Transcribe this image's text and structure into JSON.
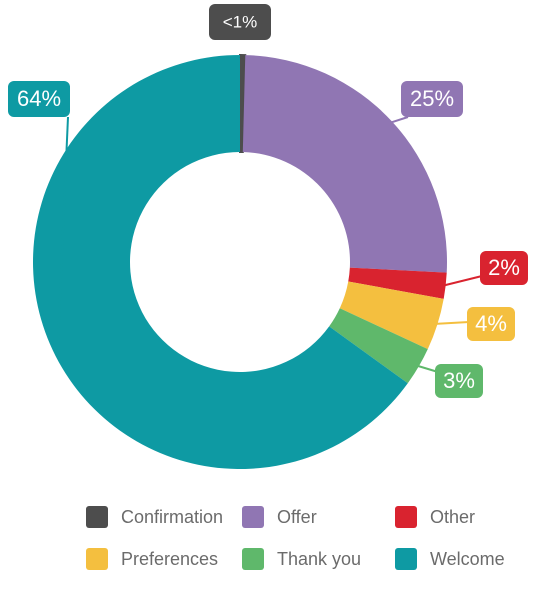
{
  "chart_data": {
    "type": "pie",
    "variant": "donut",
    "title": "",
    "slices": [
      {
        "name": "Confirmation",
        "value": 0.4,
        "label": "<1%",
        "color": "#4d4d4d"
      },
      {
        "name": "Offer",
        "value": 25,
        "label": "25%",
        "color": "#9076b3"
      },
      {
        "name": "Other",
        "value": 2,
        "label": "2%",
        "color": "#d9232f"
      },
      {
        "name": "Preferences",
        "value": 4,
        "label": "4%",
        "color": "#f4bf3f"
      },
      {
        "name": "Thank you",
        "value": 3,
        "label": "3%",
        "color": "#5fb86b"
      },
      {
        "name": "Welcome",
        "value": 64,
        "label": "64%",
        "color": "#0e9aa3"
      }
    ],
    "legend_position": "bottom"
  },
  "legend": {
    "items": [
      {
        "label": "Confirmation",
        "color": "#4d4d4d"
      },
      {
        "label": "Offer",
        "color": "#9076b3"
      },
      {
        "label": "Other",
        "color": "#d9232f"
      },
      {
        "label": "Preferences",
        "color": "#f4bf3f"
      },
      {
        "label": "Thank you",
        "color": "#5fb86b"
      },
      {
        "label": "Welcome",
        "color": "#0e9aa3"
      }
    ]
  }
}
